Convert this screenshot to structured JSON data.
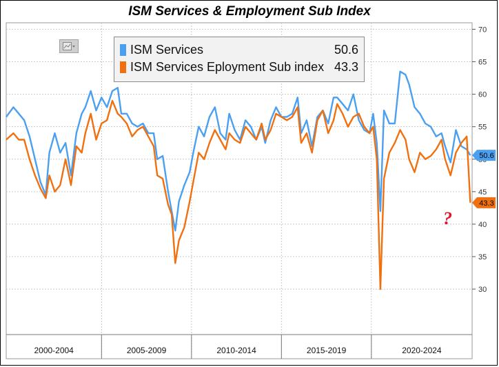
{
  "chart_data": {
    "type": "line",
    "title": "ISM Services & Employment Sub Index",
    "ylim": [
      23,
      71
    ],
    "yticks": [
      30,
      35,
      40,
      45,
      50,
      55,
      60,
      65,
      70
    ],
    "xlim": [
      1999.6,
      2025.5
    ],
    "x_category_labels": [
      "2000-2004",
      "2005-2009",
      "2010-2014",
      "2015-2019",
      "2020-2024"
    ],
    "x_category_ranges": [
      [
        1999.6,
        2004.9
      ],
      [
        2004.9,
        2009.9
      ],
      [
        2009.9,
        2014.9
      ],
      [
        2014.9,
        2019.9
      ],
      [
        2019.9,
        2025.5
      ]
    ],
    "grid": true,
    "legend_position": "top-center",
    "annotation": "?",
    "series": [
      {
        "name": "ISM Services",
        "color": "#4a9ff0",
        "last_value": "50.6",
        "x": [
          1999.6,
          2000.0,
          2000.3,
          2000.6,
          2000.9,
          2001.2,
          2001.5,
          2001.8,
          2002.0,
          2002.3,
          2002.6,
          2002.9,
          2003.2,
          2003.5,
          2003.8,
          2004.0,
          2004.3,
          2004.6,
          2004.9,
          2005.2,
          2005.5,
          2005.8,
          2006.0,
          2006.3,
          2006.6,
          2006.9,
          2007.2,
          2007.5,
          2007.8,
          2008.0,
          2008.3,
          2008.6,
          2008.8,
          2009.0,
          2009.2,
          2009.5,
          2009.8,
          2010.0,
          2010.3,
          2010.6,
          2010.9,
          2011.2,
          2011.5,
          2011.8,
          2012.0,
          2012.3,
          2012.6,
          2012.9,
          2013.2,
          2013.5,
          2013.8,
          2014.0,
          2014.3,
          2014.6,
          2014.9,
          2015.2,
          2015.5,
          2015.8,
          2016.0,
          2016.3,
          2016.6,
          2016.9,
          2017.2,
          2017.5,
          2017.8,
          2018.0,
          2018.3,
          2018.6,
          2018.9,
          2019.2,
          2019.5,
          2019.8,
          2020.0,
          2020.2,
          2020.4,
          2020.6,
          2020.9,
          2021.2,
          2021.5,
          2021.8,
          2022.0,
          2022.3,
          2022.6,
          2022.9,
          2023.2,
          2023.5,
          2023.8,
          2024.0,
          2024.3,
          2024.6,
          2024.9,
          2025.2,
          2025.4
        ],
        "y": [
          56.5,
          58.0,
          57.0,
          56.0,
          53.5,
          50.0,
          46.5,
          44.5,
          51.0,
          54.0,
          51.0,
          52.5,
          47.5,
          54.0,
          57.0,
          58.0,
          60.5,
          57.5,
          59.5,
          58.0,
          60.5,
          61.0,
          57.0,
          57.0,
          55.5,
          55.0,
          55.5,
          54.0,
          54.0,
          50.0,
          50.5,
          45.0,
          42.0,
          39.0,
          43.5,
          46.0,
          48.0,
          51.0,
          55.0,
          53.5,
          56.5,
          58.0,
          54.0,
          53.0,
          57.0,
          54.5,
          53.0,
          56.0,
          55.0,
          53.0,
          55.0,
          52.5,
          56.0,
          58.0,
          56.5,
          56.5,
          57.0,
          59.5,
          54.0,
          56.0,
          52.0,
          56.5,
          57.5,
          55.5,
          59.5,
          59.5,
          58.5,
          57.5,
          60.0,
          56.0,
          54.5,
          54.0,
          57.0,
          52.5,
          42.0,
          57.5,
          55.5,
          55.5,
          63.5,
          63.0,
          61.5,
          58.0,
          57.0,
          55.5,
          55.0,
          53.5,
          54.0,
          52.0,
          49.5,
          54.5,
          52.0,
          51.5,
          50.6
        ]
      },
      {
        "name": "ISM Services Eployment Sub index",
        "color": "#f07010",
        "last_value": "43.3",
        "x": [
          1999.6,
          2000.0,
          2000.3,
          2000.6,
          2000.9,
          2001.2,
          2001.5,
          2001.8,
          2002.0,
          2002.3,
          2002.6,
          2002.9,
          2003.2,
          2003.5,
          2003.8,
          2004.0,
          2004.3,
          2004.6,
          2004.9,
          2005.2,
          2005.5,
          2005.8,
          2006.0,
          2006.3,
          2006.6,
          2006.9,
          2007.2,
          2007.5,
          2007.8,
          2008.0,
          2008.3,
          2008.6,
          2008.8,
          2009.0,
          2009.2,
          2009.5,
          2009.8,
          2010.0,
          2010.3,
          2010.6,
          2010.9,
          2011.2,
          2011.5,
          2011.8,
          2012.0,
          2012.3,
          2012.6,
          2012.9,
          2013.2,
          2013.5,
          2013.8,
          2014.0,
          2014.3,
          2014.6,
          2014.9,
          2015.2,
          2015.5,
          2015.8,
          2016.0,
          2016.3,
          2016.6,
          2016.9,
          2017.2,
          2017.5,
          2017.8,
          2018.0,
          2018.3,
          2018.6,
          2018.9,
          2019.2,
          2019.5,
          2019.8,
          2020.0,
          2020.2,
          2020.4,
          2020.6,
          2020.9,
          2021.2,
          2021.5,
          2021.8,
          2022.0,
          2022.3,
          2022.6,
          2022.9,
          2023.2,
          2023.5,
          2023.8,
          2024.0,
          2024.3,
          2024.6,
          2024.9,
          2025.2,
          2025.4
        ],
        "y": [
          53.0,
          54.0,
          53.0,
          53.0,
          50.0,
          47.5,
          45.5,
          44.0,
          47.5,
          45.0,
          46.0,
          50.0,
          46.0,
          52.0,
          51.0,
          54.0,
          57.0,
          53.0,
          55.5,
          56.0,
          59.0,
          57.0,
          56.5,
          55.5,
          53.5,
          54.5,
          55.0,
          53.5,
          52.0,
          47.5,
          47.0,
          43.0,
          41.5,
          34.0,
          37.5,
          39.5,
          43.5,
          46.5,
          51.0,
          50.0,
          52.5,
          54.5,
          53.0,
          51.5,
          54.0,
          53.0,
          52.5,
          55.0,
          54.0,
          53.0,
          55.5,
          53.0,
          54.5,
          57.0,
          56.5,
          56.0,
          56.5,
          58.0,
          52.5,
          54.0,
          51.0,
          56.0,
          57.5,
          54.0,
          56.0,
          58.5,
          57.0,
          55.0,
          56.5,
          57.0,
          55.0,
          54.0,
          55.0,
          50.0,
          30.0,
          47.0,
          51.0,
          52.5,
          54.5,
          53.0,
          50.0,
          48.0,
          51.0,
          50.0,
          50.5,
          51.5,
          53.0,
          50.0,
          47.5,
          51.0,
          52.5,
          53.5,
          43.3
        ]
      }
    ]
  },
  "legend": {
    "items": [
      {
        "label": "ISM Services",
        "value": "50.6",
        "color": "#4a9ff0"
      },
      {
        "label": "ISM Services Eployment Sub index",
        "value": "43.3",
        "color": "#f07010"
      }
    ]
  },
  "icons": {
    "chart_type_toggle": "line-chart-icon",
    "chart_type_caret": "caret-down-icon"
  }
}
